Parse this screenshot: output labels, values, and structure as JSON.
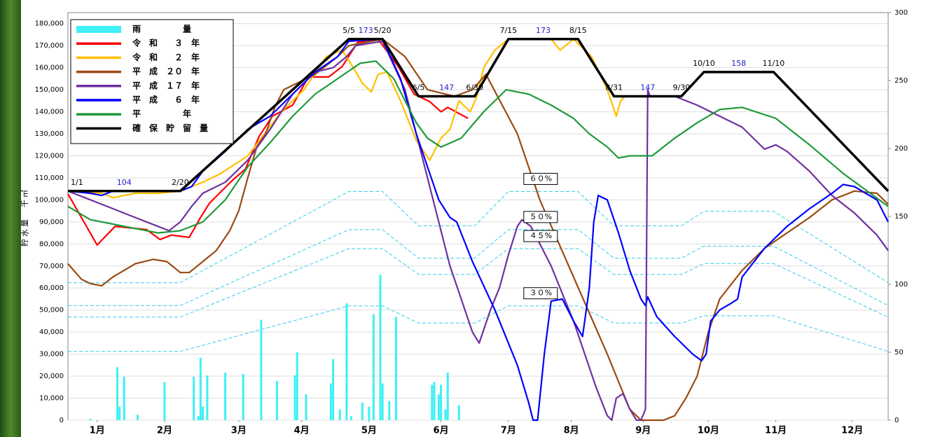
{
  "chart_data": {
    "type": "line",
    "y_label": "貯水量　千㎥",
    "xlim": [
      0,
      365
    ],
    "xticks": [
      {
        "value": 13,
        "label": "1月"
      },
      {
        "value": 43,
        "label": "2月"
      },
      {
        "value": 76,
        "label": "3月"
      },
      {
        "value": 104,
        "label": "4月"
      },
      {
        "value": 134,
        "label": "5月"
      },
      {
        "value": 166,
        "label": "6月"
      },
      {
        "value": 196,
        "label": "7月"
      },
      {
        "value": 224,
        "label": "8月"
      },
      {
        "value": 256,
        "label": "9月"
      },
      {
        "value": 285,
        "label": "10月"
      },
      {
        "value": 315,
        "label": "11月"
      },
      {
        "value": 349,
        "label": "12月"
      }
    ],
    "ylim": [
      0,
      185000
    ],
    "yticks": [
      0,
      {
        "value": 10000,
        "label": "10,000"
      },
      {
        "value": 20000,
        "label": "20,000"
      },
      {
        "value": 30000,
        "label": "30,000"
      },
      {
        "value": 40000,
        "label": "40,000"
      },
      {
        "value": 50000,
        "label": "50,000"
      },
      {
        "value": 60000,
        "label": "60,000"
      },
      {
        "value": 70000,
        "label": "70,000"
      },
      {
        "value": 80000,
        "label": "80,000"
      },
      {
        "value": 90000,
        "label": "90,000"
      },
      {
        "value": 100000,
        "label": "100,000"
      },
      {
        "value": 110000,
        "label": "110,000"
      },
      {
        "value": 120000,
        "label": "120,000"
      },
      {
        "value": 130000,
        "label": "130,000"
      },
      {
        "value": 140000,
        "label": "140,000"
      },
      {
        "value": 150000,
        "label": "150,000"
      },
      {
        "value": 160000,
        "label": "160,000"
      },
      {
        "value": 170000,
        "label": "170,000"
      },
      {
        "value": 180000,
        "label": "180,000"
      }
    ],
    "y2lim": [
      0,
      300
    ],
    "y2ticks": [
      0,
      50,
      100,
      150,
      200,
      250,
      300
    ],
    "grid": true,
    "legend": "upper left",
    "series": [
      {
        "name": "雨　　　　　量",
        "color": "#3ff0f5",
        "kind": "bar",
        "axis": "y2",
        "x": [
          10,
          22,
          23,
          25,
          31,
          43,
          56,
          58,
          59,
          60,
          62,
          70,
          78,
          86,
          93,
          101,
          102,
          106,
          117,
          118,
          121,
          124,
          126,
          131,
          134,
          136,
          139,
          140,
          143,
          146,
          162,
          163,
          165,
          166,
          168,
          169,
          174
        ],
        "values": [
          1,
          39,
          10,
          32,
          4,
          28,
          32,
          3,
          46,
          10,
          33,
          35,
          34,
          74,
          29,
          33,
          50,
          19,
          27,
          45,
          8,
          86,
          3,
          13,
          10,
          78,
          107,
          27,
          14,
          76,
          26,
          28,
          19,
          26,
          8,
          35,
          11
        ]
      },
      {
        "name": "令　和　　３　年",
        "color": "#ff0000",
        "x": [
          0,
          13,
          21,
          35,
          41,
          46,
          54,
          59,
          63,
          73,
          79,
          85,
          91,
          100,
          107,
          116,
          122,
          129,
          138,
          147,
          154,
          161,
          166,
          169,
          178
        ],
        "values": [
          102700,
          79500,
          88000,
          86500,
          82000,
          84000,
          83000,
          92000,
          98500,
          108700,
          114000,
          128700,
          138000,
          143000,
          155800,
          155800,
          160500,
          171600,
          173000,
          160500,
          148000,
          144600,
          140000,
          142000,
          137000
        ]
      },
      {
        "name": "令　和　　２　年",
        "color": "#ffc000",
        "x": [
          0,
          15,
          20,
          30,
          40,
          50,
          60,
          68,
          80,
          95,
          105,
          115,
          122,
          127,
          131,
          135,
          138,
          142,
          148,
          155,
          161,
          166,
          170,
          174,
          179,
          182,
          185,
          190,
          196,
          215,
          219,
          225,
          233,
          240,
          244,
          246,
          248
        ],
        "values": [
          104000,
          103000,
          101000,
          103000,
          103000,
          104000,
          108000,
          112000,
          120000,
          140000,
          150000,
          165000,
          168000,
          160000,
          153000,
          149000,
          157000,
          158000,
          145000,
          127000,
          118000,
          128000,
          132000,
          145000,
          140000,
          147000,
          160000,
          168000,
          173000,
          173000,
          168000,
          173000,
          165000,
          150000,
          138000,
          145000,
          147000
        ]
      },
      {
        "name": "平　成　２０　年",
        "color": "#9c4a12",
        "x": [
          0,
          6,
          10,
          15,
          20,
          30,
          38,
          44,
          50,
          54,
          60,
          66,
          72,
          76,
          80,
          84,
          88,
          92,
          96,
          110,
          120,
          125,
          140,
          150,
          160,
          172,
          180,
          186,
          200,
          210,
          225,
          240,
          250,
          255,
          265,
          270,
          275,
          280,
          285,
          290,
          300,
          310,
          320,
          330,
          340,
          350,
          360,
          365
        ],
        "values": [
          71000,
          64000,
          62000,
          61000,
          65000,
          71000,
          73000,
          72000,
          67000,
          67000,
          72000,
          77000,
          86000,
          95000,
          110000,
          124000,
          130000,
          142000,
          150000,
          157000,
          165000,
          170000,
          173000,
          165000,
          150000,
          147000,
          150000,
          157000,
          130000,
          100000,
          65000,
          30000,
          5000,
          0,
          0,
          2000,
          10000,
          20000,
          40000,
          55000,
          68000,
          78000,
          85000,
          92000,
          100000,
          104000,
          103000,
          98000
        ]
      },
      {
        "name": "平　成　１７　年",
        "color": "#7030a0",
        "x": [
          0,
          10,
          20,
          30,
          40,
          45,
          50,
          55,
          60,
          70,
          80,
          90,
          100,
          110,
          118,
          124,
          128,
          140,
          150,
          160,
          170,
          180,
          183,
          188,
          192,
          196,
          200,
          202,
          206,
          215,
          225,
          235,
          240,
          242,
          244,
          247,
          250,
          253,
          255,
          257,
          258,
          259,
          270,
          280,
          290,
          300,
          310,
          315,
          320,
          330,
          340,
          350,
          360,
          365
        ],
        "values": [
          104000,
          100000,
          96000,
          92000,
          88000,
          86000,
          90000,
          97000,
          103000,
          108000,
          118000,
          132000,
          148000,
          158000,
          160000,
          165000,
          170000,
          172000,
          150000,
          110000,
          70000,
          40000,
          35000,
          50000,
          60000,
          75000,
          88000,
          91000,
          88000,
          70000,
          45000,
          15000,
          2000,
          0,
          10000,
          12000,
          5000,
          0,
          0,
          5000,
          150000,
          147000,
          147000,
          143000,
          138000,
          133000,
          123000,
          125000,
          122000,
          113000,
          102000,
          94000,
          84000,
          77000
        ]
      },
      {
        "name": "平　成　　６　年",
        "color": "#0000ff",
        "x": [
          0,
          10,
          15,
          20,
          30,
          50,
          55,
          60,
          70,
          80,
          90,
          100,
          110,
          120,
          125,
          140,
          148,
          155,
          160,
          165,
          170,
          173,
          180,
          190,
          200,
          205,
          207,
          209,
          212,
          215,
          220,
          225,
          229,
          232,
          234,
          236,
          240,
          245,
          250,
          255,
          257,
          258,
          262,
          270,
          278,
          282,
          284,
          286,
          290,
          295,
          298,
          300,
          310,
          320,
          330,
          340,
          345,
          350,
          355,
          360,
          365
        ],
        "values": [
          104000,
          103000,
          102000,
          104000,
          104000,
          104000,
          106000,
          113000,
          122000,
          132000,
          138000,
          148000,
          158000,
          165000,
          172000,
          173000,
          155000,
          130000,
          115000,
          100000,
          92000,
          90000,
          72000,
          50000,
          25000,
          8000,
          0,
          0,
          30000,
          54000,
          55000,
          45000,
          38000,
          60000,
          90000,
          102000,
          100000,
          85000,
          68000,
          55000,
          52000,
          56000,
          47000,
          38000,
          30000,
          27000,
          30000,
          45000,
          50000,
          53000,
          55000,
          65000,
          78000,
          88000,
          96000,
          103000,
          107000,
          106000,
          103000,
          100000,
          90000
        ]
      },
      {
        "name": "平　　　　　年",
        "color": "#1f9a3a",
        "x": [
          0,
          10,
          20,
          30,
          40,
          50,
          60,
          70,
          80,
          90,
          100,
          110,
          120,
          130,
          137,
          145,
          150,
          155,
          160,
          166,
          175,
          185,
          195,
          205,
          215,
          225,
          232,
          240,
          245,
          250,
          260,
          270,
          280,
          290,
          300,
          315,
          330,
          345,
          365
        ],
        "values": [
          97000,
          91000,
          89000,
          87000,
          85000,
          86000,
          90000,
          100000,
          115000,
          126000,
          138000,
          148000,
          155000,
          162000,
          163000,
          155000,
          145000,
          135000,
          128000,
          124000,
          128000,
          140000,
          150000,
          148000,
          143000,
          137000,
          130000,
          124000,
          119000,
          120000,
          120000,
          128000,
          135000,
          141000,
          142000,
          137000,
          125000,
          112000,
          97000
        ]
      },
      {
        "name": "確　保　貯　留　量",
        "color": "#000000",
        "width": 3.5,
        "x": [
          0,
          50,
          125,
          140,
          156,
          181,
          196,
          227,
          243,
          273,
          283,
          314,
          365
        ],
        "values": [
          104000,
          104000,
          173000,
          173000,
          147000,
          147000,
          173000,
          173000,
          147000,
          147000,
          158000,
          158000,
          104000
        ],
        "date_labels": [
          "1/1",
          "2/20",
          "5/5",
          "5/20",
          "6/5",
          "6/30",
          "7/15",
          "8/15",
          "8/31",
          "9/30",
          "10/10",
          "11/10",
          null
        ],
        "plateau_labels": [
          "104",
          null,
          "173",
          null,
          "147",
          null,
          "173",
          null,
          "147",
          null,
          "158",
          null
        ]
      }
    ],
    "ratio_lines": [
      {
        "name": "６０%",
        "color": "#33ccee",
        "values": [
          62400,
          62400,
          103800,
          103800,
          88200,
          88200,
          103800,
          103800,
          88200,
          88200,
          94800,
          94800,
          62400
        ]
      },
      {
        "name": "５０%",
        "color": "#33ccee",
        "values": [
          52000,
          52000,
          86500,
          86500,
          73500,
          73500,
          86500,
          86500,
          73500,
          73500,
          79000,
          79000,
          52000
        ]
      },
      {
        "name": "４５%",
        "color": "#33ccee",
        "values": [
          46800,
          46800,
          77850,
          77850,
          66150,
          66150,
          77850,
          77850,
          66150,
          66150,
          71100,
          71100,
          46800
        ]
      },
      {
        "name": "３０%",
        "color": "#33ccee",
        "values": [
          31200,
          31200,
          51900,
          51900,
          44100,
          44100,
          51900,
          51900,
          44100,
          44100,
          47400,
          47400,
          31200
        ]
      }
    ]
  }
}
